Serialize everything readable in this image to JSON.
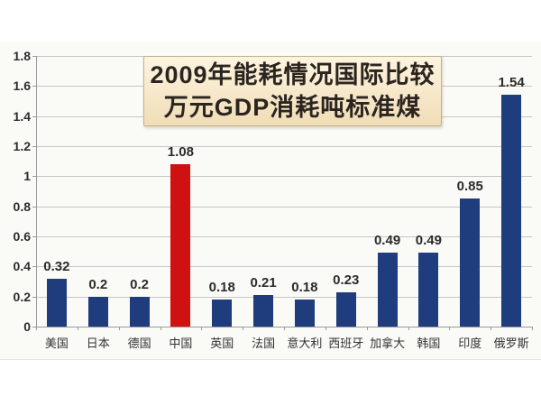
{
  "title_box": {
    "line1": "2009年能耗情况国际比较",
    "line2": "万元GDP消耗吨标准煤",
    "bg_top": "#fdf4e0",
    "bg_bottom": "#f1ddb6",
    "border_color": "#c3b18c",
    "text_color": "#2b2520"
  },
  "chart_data": {
    "type": "bar",
    "title": "2009年能耗情况国际比较 万元GDP消耗吨标准煤",
    "categories": [
      "美国",
      "日本",
      "德国",
      "中国",
      "英国",
      "法国",
      "意大利",
      "西班牙",
      "加拿大",
      "韩国",
      "印度",
      "俄罗斯"
    ],
    "values": [
      0.32,
      0.2,
      0.2,
      1.08,
      0.18,
      0.21,
      0.18,
      0.23,
      0.49,
      0.49,
      0.85,
      1.54
    ],
    "value_labels": [
      "0.32",
      "0.2",
      "0.2",
      "1.08",
      "0.18",
      "0.21",
      "0.18",
      "0.23",
      "0.49",
      "0.49",
      "0.85",
      "1.54"
    ],
    "highlight_index": 3,
    "bar_color": "#1f3c7d",
    "highlight_color": "#cf1111",
    "y_ticks": [
      "1.8",
      "1.6",
      "1.4",
      "1.2",
      "1",
      "0.8",
      "0.6",
      "0.4",
      "0.2",
      "0"
    ],
    "ylim": [
      0,
      1.8
    ],
    "y_step": 0.2,
    "grid": true,
    "gridline_color": "#c5c5c5",
    "axis_color": "#9b9b9b",
    "xlabel": "",
    "ylabel": "",
    "legend": "none"
  }
}
